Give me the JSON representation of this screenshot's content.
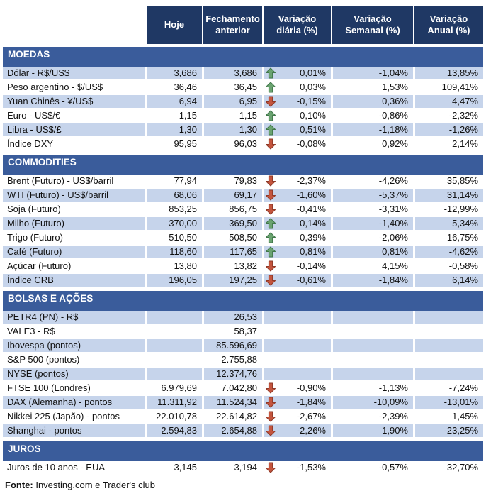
{
  "chart_data": {
    "type": "table",
    "columns": [
      "Hoje",
      "Fechamento anterior",
      "Variação diária (%)",
      "Variação Semanal (%)",
      "Variação Anual (%)"
    ],
    "colors": {
      "header_bg": "#1F3864",
      "section_bg": "#3A5C9B",
      "shaded_row_bg": "#C6D4EB",
      "arrow_up_fill": "#6AA370",
      "arrow_up_stroke": "#41774B",
      "arrow_down_fill": "#C4553E",
      "arrow_down_stroke": "#8F3A28"
    },
    "sections": [
      {
        "title": "MOEDAS",
        "rows": [
          {
            "label": "Dólar - R$/US$",
            "hoje": "3,686",
            "fechamento": "3,686",
            "trend": "up",
            "diaria": "0,01%",
            "semanal": "-1,04%",
            "anual": "13,85%"
          },
          {
            "label": "Peso argentino - $/US$",
            "hoje": "36,46",
            "fechamento": "36,45",
            "trend": "up",
            "diaria": "0,03%",
            "semanal": "1,53%",
            "anual": "109,41%"
          },
          {
            "label": "Yuan Chinês - ¥/US$",
            "hoje": "6,94",
            "fechamento": "6,95",
            "trend": "down",
            "diaria": "-0,15%",
            "semanal": "0,36%",
            "anual": "4,47%"
          },
          {
            "label": "Euro - US$/€",
            "hoje": "1,15",
            "fechamento": "1,15",
            "trend": "up",
            "diaria": "0,10%",
            "semanal": "-0,86%",
            "anual": "-2,32%"
          },
          {
            "label": "Libra - US$/£",
            "hoje": "1,30",
            "fechamento": "1,30",
            "trend": "up",
            "diaria": "0,51%",
            "semanal": "-1,18%",
            "anual": "-1,26%"
          },
          {
            "label": "Índice DXY",
            "hoje": "95,95",
            "fechamento": "96,03",
            "trend": "down",
            "diaria": "-0,08%",
            "semanal": "0,92%",
            "anual": "2,14%"
          }
        ]
      },
      {
        "title": "COMMODITIES",
        "rows": [
          {
            "label": "Brent (Futuro) - US$/barril",
            "hoje": "77,94",
            "fechamento": "79,83",
            "trend": "down",
            "diaria": "-2,37%",
            "semanal": "-4,26%",
            "anual": "35,85%"
          },
          {
            "label": "WTI (Futuro) - US$/barril",
            "hoje": "68,06",
            "fechamento": "69,17",
            "trend": "down",
            "diaria": "-1,60%",
            "semanal": "-5,37%",
            "anual": "31,14%"
          },
          {
            "label": "Soja (Futuro)",
            "hoje": "853,25",
            "fechamento": "856,75",
            "trend": "down",
            "diaria": "-0,41%",
            "semanal": "-3,31%",
            "anual": "-12,99%"
          },
          {
            "label": "Milho (Futuro)",
            "hoje": "370,00",
            "fechamento": "369,50",
            "trend": "up",
            "diaria": "0,14%",
            "semanal": "-1,40%",
            "anual": "5,34%"
          },
          {
            "label": "Trigo (Futuro)",
            "hoje": "510,50",
            "fechamento": "508,50",
            "trend": "up",
            "diaria": "0,39%",
            "semanal": "-2,06%",
            "anual": "16,75%"
          },
          {
            "label": "Café (Futuro)",
            "hoje": "118,60",
            "fechamento": "117,65",
            "trend": "up",
            "diaria": "0,81%",
            "semanal": "0,81%",
            "anual": "-4,62%"
          },
          {
            "label": "Açúcar (Futuro)",
            "hoje": "13,80",
            "fechamento": "13,82",
            "trend": "down",
            "diaria": "-0,14%",
            "semanal": "4,15%",
            "anual": "-0,58%"
          },
          {
            "label": "Índice CRB",
            "hoje": "196,05",
            "fechamento": "197,25",
            "trend": "down",
            "diaria": "-0,61%",
            "semanal": "-1,84%",
            "anual": "6,14%"
          }
        ]
      },
      {
        "title": "BOLSAS E AÇÕES",
        "rows": [
          {
            "label": "PETR4 (PN) - R$",
            "hoje": "",
            "fechamento": "26,53",
            "trend": null,
            "diaria": "",
            "semanal": "",
            "anual": ""
          },
          {
            "label": "VALE3 - R$",
            "hoje": "",
            "fechamento": "58,37",
            "trend": null,
            "diaria": "",
            "semanal": "",
            "anual": ""
          },
          {
            "label": "Ibovespa (pontos)",
            "hoje": "",
            "fechamento": "85.596,69",
            "trend": null,
            "diaria": "",
            "semanal": "",
            "anual": ""
          },
          {
            "label": "S&P 500 (pontos)",
            "hoje": "",
            "fechamento": "2.755,88",
            "trend": null,
            "diaria": "",
            "semanal": "",
            "anual": ""
          },
          {
            "label": "NYSE (pontos)",
            "hoje": "",
            "fechamento": "12.374,76",
            "trend": null,
            "diaria": "",
            "semanal": "",
            "anual": ""
          },
          {
            "label": "FTSE 100 (Londres)",
            "hoje": "6.979,69",
            "fechamento": "7.042,80",
            "trend": "down",
            "diaria": "-0,90%",
            "semanal": "-1,13%",
            "anual": "-7,24%"
          },
          {
            "label": "DAX (Alemanha) - pontos",
            "hoje": "11.311,92",
            "fechamento": "11.524,34",
            "trend": "down",
            "diaria": "-1,84%",
            "semanal": "-10,09%",
            "anual": "-13,01%"
          },
          {
            "label": "Nikkei 225 (Japão) - pontos",
            "hoje": "22.010,78",
            "fechamento": "22.614,82",
            "trend": "down",
            "diaria": "-2,67%",
            "semanal": "-2,39%",
            "anual": "1,45%"
          },
          {
            "label": "Shanghai - pontos",
            "hoje": "2.594,83",
            "fechamento": "2.654,88",
            "trend": "down",
            "diaria": "-2,26%",
            "semanal": "1,90%",
            "anual": "-23,25%"
          }
        ]
      },
      {
        "title": "JUROS",
        "rows": [
          {
            "label": "Juros de 10 anos - EUA",
            "hoje": "3,145",
            "fechamento": "3,194",
            "trend": "down",
            "diaria": "-1,53%",
            "semanal": "-0,57%",
            "anual": "32,70%"
          }
        ]
      }
    ],
    "source": {
      "label": "Fonte:",
      "text": " Investing.com e Trader's club"
    }
  }
}
